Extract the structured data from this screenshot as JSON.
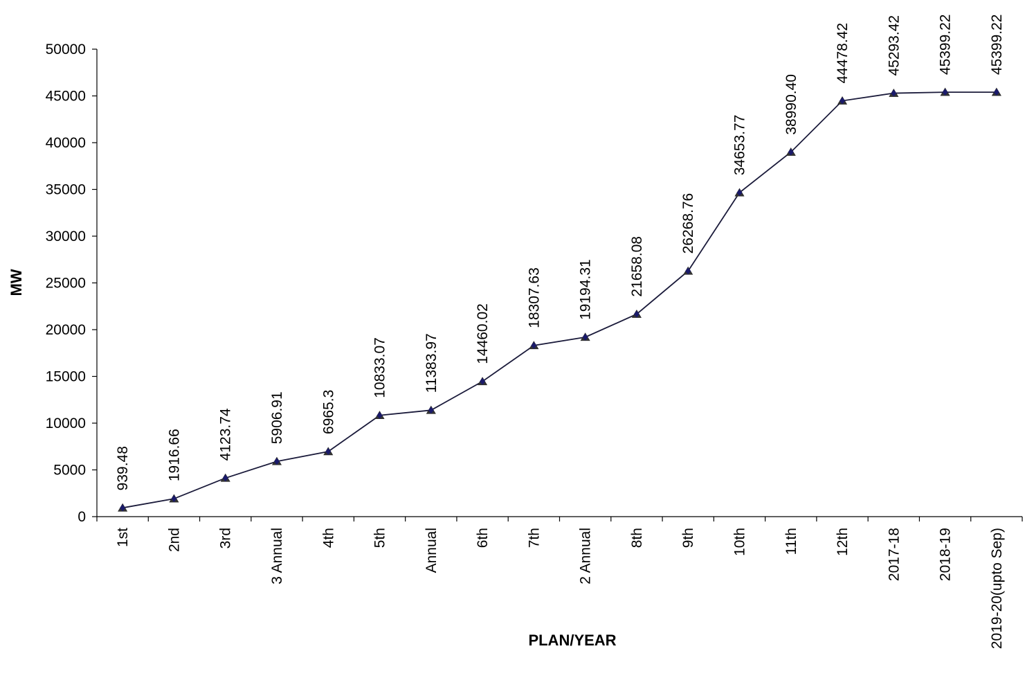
{
  "chart_data": {
    "type": "line",
    "xlabel": "PLAN/YEAR",
    "ylabel": "MW",
    "ylim": [
      0,
      50000
    ],
    "yticks": [
      0,
      5000,
      10000,
      15000,
      20000,
      25000,
      30000,
      35000,
      40000,
      45000,
      50000
    ],
    "grid": false,
    "legend": "none",
    "categories": [
      "1st",
      "2nd",
      "3rd",
      "3 Annual",
      "4th",
      "5th",
      "Annual",
      "6th",
      "7th",
      "2 Annual",
      "8th",
      "9th",
      "10th",
      "11th",
      "12th",
      "2017-18",
      "2018-19",
      "2019-20(upto Sep)"
    ],
    "values": [
      939.48,
      1916.66,
      4123.74,
      5906.91,
      6965.3,
      10833.07,
      11383.97,
      14460.02,
      18307.63,
      19194.31,
      21658.08,
      26268.76,
      34653.77,
      38990.4,
      44478.42,
      45293.42,
      45399.22,
      45399.22
    ],
    "value_labels": [
      "939.48",
      "1916.66",
      "4123.74",
      "5906.91",
      "6965.3",
      "10833.07",
      "11383.97",
      "14460.02",
      "18307.63",
      "19194.31",
      "21658.08",
      "26268.76",
      "34653.77",
      "38990.40",
      "44478.42",
      "45293.42",
      "45399.22",
      "45399.22"
    ],
    "colors": {
      "line": "#1a1a3a",
      "marker": "#1a1a6a",
      "axis": "#000000"
    }
  }
}
